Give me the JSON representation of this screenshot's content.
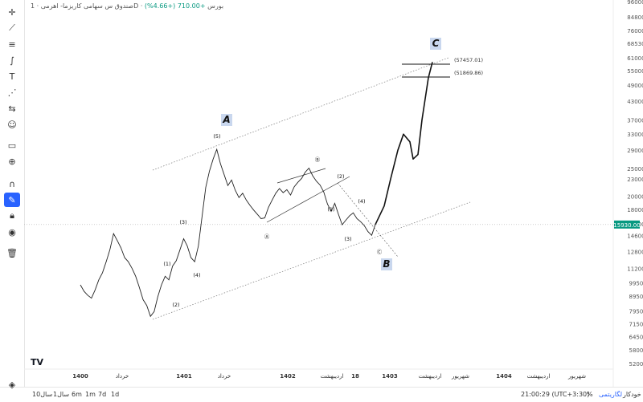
{
  "header": {
    "exchange": "بورس",
    "timeframe": "1D",
    "symbol": "صندوق س سهامی کاریزما- اهرمی",
    "change": "+710.00 (+4.66%)"
  },
  "current_price": "15930.00",
  "toolbar_icons": [
    "crosshair-icon",
    "trendline-icon",
    "fib-icon",
    "brush-icon",
    "text-icon",
    "pattern-icon",
    "measure-icon",
    "emoji-icon",
    "ruler-icon",
    "zoom-icon",
    "magnet-icon",
    "lock-draw-icon",
    "lock-icon",
    "eye-icon",
    "trash-icon",
    "layers-icon"
  ],
  "bottom": {
    "ranges": [
      "1d",
      "7d",
      "1m",
      "6m",
      "1سال",
      "10سال"
    ],
    "time": "21:00:29 (UTC+3:30)",
    "percent": "%",
    "log": "لگاریتمی",
    "auto": "خودکار"
  },
  "logo": "TV",
  "chart_data": {
    "type": "line",
    "scale": "log",
    "y_ticks": [
      "96000.00",
      "84800.00",
      "76000.00",
      "68530.00",
      "61000.00",
      "55000.00",
      "49000.00",
      "43000.00",
      "37000.00",
      "33000.00",
      "29000.00",
      "25000.00",
      "23000.00",
      "20000.00",
      "18000.00",
      "16000.00",
      "14600.00",
      "12800.00",
      "11200.00",
      "9950.00",
      "8950.00",
      "7950.00",
      "7150.00",
      "6450.00",
      "5800.00",
      "5200.00"
    ],
    "x_ticks": [
      "1400",
      "خرداد",
      "1401",
      "خرداد",
      "1402",
      "اردیبهشت",
      "18",
      "1403",
      "اردیبهشت",
      "شهریور",
      "1404",
      "اردیبهشت",
      "شهریور"
    ],
    "price_path": [
      9800,
      9300,
      9000,
      8800,
      9400,
      10200,
      10800,
      11800,
      13000,
      14800,
      14000,
      13200,
      12200,
      11800,
      11200,
      10500,
      9600,
      8700,
      8300,
      7600,
      7900,
      8900,
      9800,
      10500,
      10200,
      11400,
      11900,
      13000,
      14200,
      13400,
      12200,
      11800,
      13400,
      17000,
      21500,
      24500,
      27000,
      29200,
      26000,
      23800,
      21800,
      22800,
      21000,
      19800,
      20500,
      19400,
      18600,
      17900,
      17300,
      16700,
      16800,
      18300,
      19400,
      20500,
      21300,
      20600,
      21100,
      20200,
      21600,
      22400,
      23100,
      24300,
      25100,
      23600,
      22600,
      21900,
      20700,
      18800,
      17700,
      18900,
      17300,
      15900,
      16500,
      17100,
      17500,
      16700,
      16300,
      15800,
      15050,
      14600,
      15930
    ],
    "projection_path": [
      15930,
      18500,
      23000,
      29000,
      33000,
      31000,
      27000,
      28000,
      37000,
      52000,
      59000
    ],
    "levels": [
      {
        "label": "(57457.01)",
        "value": 57457
      },
      {
        "label": "(51869.86)",
        "value": 51869
      }
    ],
    "wave_labels": [
      "(1)",
      "(2)",
      "(3)",
      "(4)",
      "(5)",
      "A",
      "B",
      "C",
      "Ⓐ",
      "Ⓑ",
      "Ⓒ",
      "(1)",
      "(2)",
      "(3)",
      "(4)",
      "(5)"
    ],
    "channel": "parallel",
    "grid": false
  }
}
